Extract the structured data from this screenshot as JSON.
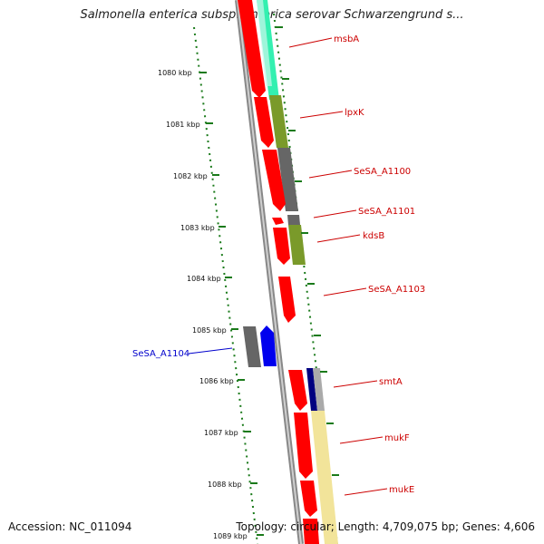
{
  "title": "Salmonella enterica subsp. enterica serovar Schwarzengrund s...",
  "footer": {
    "accession": "Accession: NC_011094",
    "summary": "Topology: circular; Length: 4,709,075 bp; Genes: 4,606"
  },
  "ruler_labels": [
    "1080 kbp",
    "1081 kbp",
    "1082 kbp",
    "1083 kbp",
    "1084 kbp",
    "1085 kbp",
    "1086 kbp",
    "1087 kbp",
    "1088 kbp",
    "1089 kbp"
  ],
  "gene_labels": [
    {
      "name": "msbA",
      "color": "#cc0000"
    },
    {
      "name": "lpxK",
      "color": "#cc0000"
    },
    {
      "name": "SeSA_A1100",
      "color": "#cc0000"
    },
    {
      "name": "SeSA_A1101",
      "color": "#cc0000"
    },
    {
      "name": "kdsB",
      "color": "#cc0000"
    },
    {
      "name": "SeSA_A1103",
      "color": "#cc0000"
    },
    {
      "name": "SeSA_A1104",
      "color": "#0000cc"
    },
    {
      "name": "smtA",
      "color": "#cc0000"
    },
    {
      "name": "mukF",
      "color": "#cc0000"
    },
    {
      "name": "mukE",
      "color": "#cc0000"
    }
  ],
  "colors": {
    "cds_forward": "#ff0000",
    "cds_reverse": "#0000ff",
    "backbone": "#888888",
    "tick": "#1a7a1a",
    "cog_cyan": "#22ddaa",
    "cog_olive": "#7a9a2a",
    "cog_gray": "#666666",
    "cog_yellow": "#f2e49a",
    "cog_navy": "#000080"
  }
}
